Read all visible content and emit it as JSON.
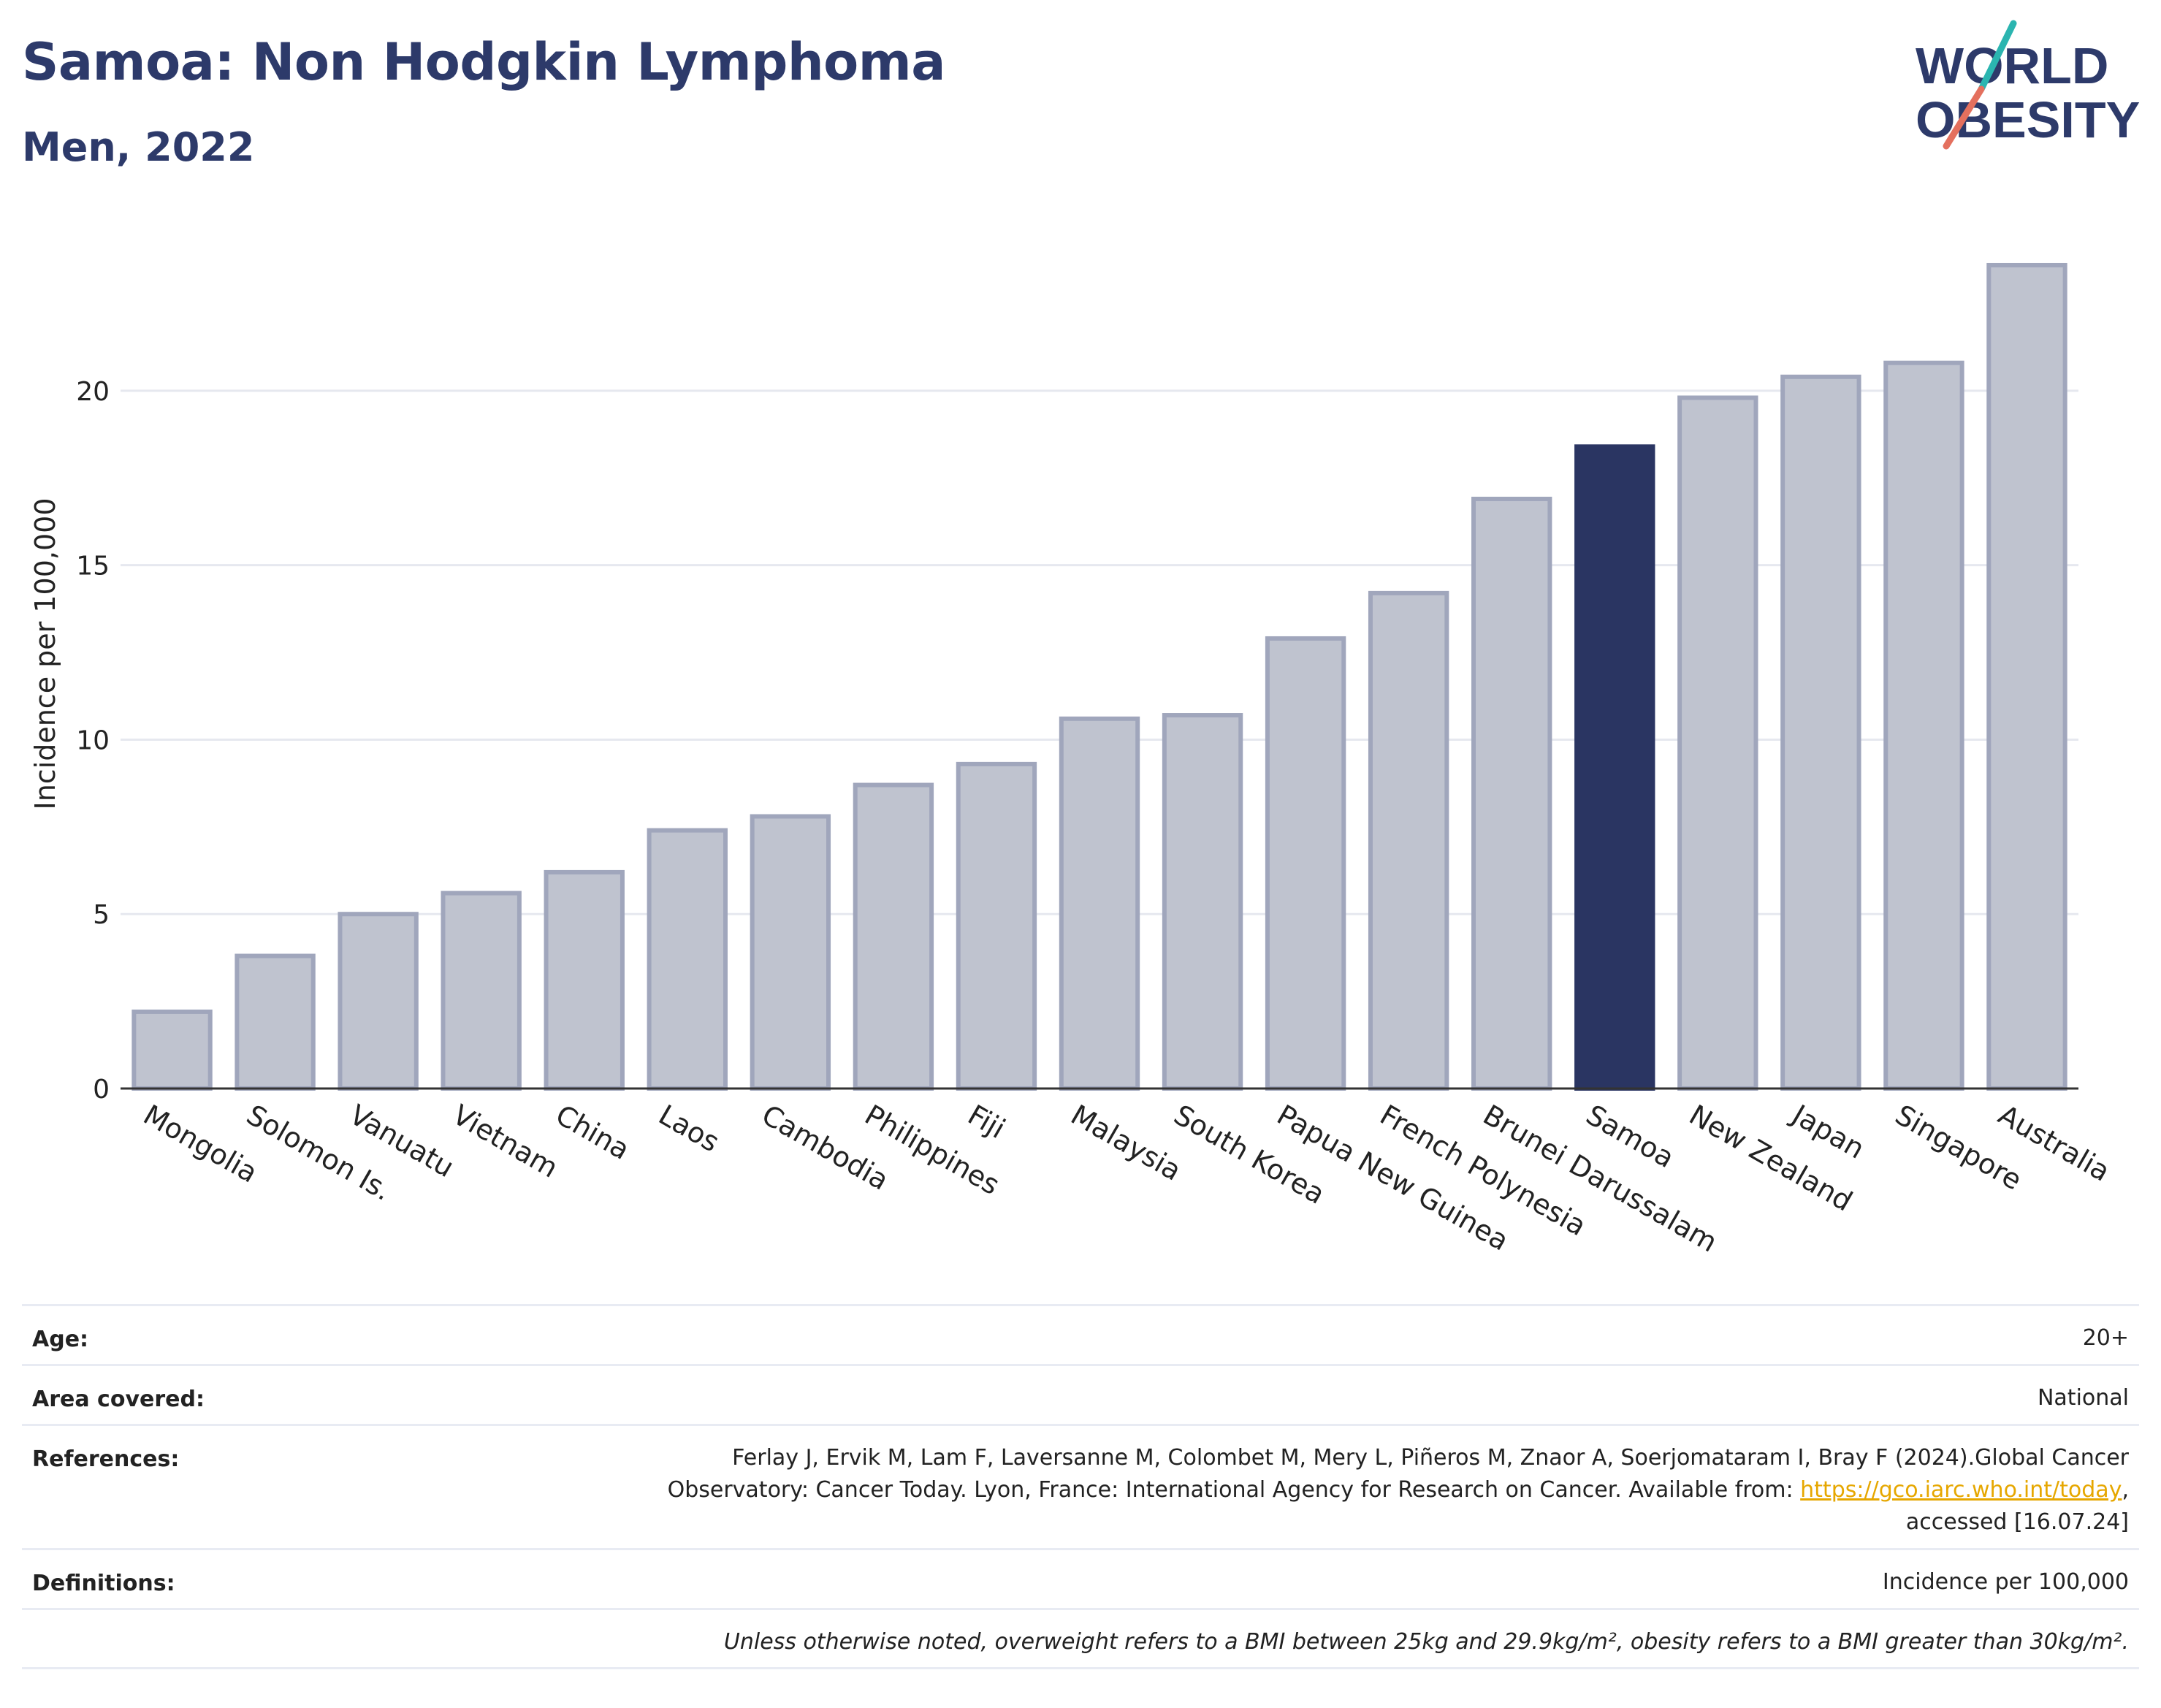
{
  "header": {
    "title": "Samoa: Non Hodgkin Lymphoma",
    "subtitle": "Men, 2022"
  },
  "logo": {
    "line1": "WORLD",
    "line2": "OBESITY",
    "accent_colors": [
      "#2bb5b0",
      "#e4705e"
    ]
  },
  "chart_data": {
    "type": "bar",
    "title": "",
    "xlabel": "",
    "ylabel": "Incidence per 100,000",
    "ylim": [
      0,
      24.5
    ],
    "yticks": [
      0,
      5,
      10,
      15,
      20
    ],
    "grid": true,
    "highlight": "Samoa",
    "colors": {
      "default": "#bfc3cf",
      "default_stroke": "#a0a6bc",
      "highlight": "#2a3562"
    },
    "categories": [
      "Mongolia",
      "Solomon Is.",
      "Vanuatu",
      "Vietnam",
      "China",
      "Laos",
      "Cambodia",
      "Philippines",
      "Fiji",
      "Malaysia",
      "South Korea",
      "Papua New Guinea",
      "French Polynesia",
      "Brunei Darussalam",
      "Samoa",
      "New Zealand",
      "Japan",
      "Singapore",
      "Australia"
    ],
    "values": [
      2.2,
      3.8,
      5.0,
      5.6,
      6.2,
      7.4,
      7.8,
      8.7,
      9.3,
      10.6,
      10.7,
      12.9,
      14.2,
      16.9,
      18.4,
      19.8,
      20.4,
      20.8,
      23.6
    ]
  },
  "info": {
    "age_label": "Age:",
    "age_value": "20+",
    "area_label": "Area covered:",
    "area_value": "National",
    "ref_label": "References:",
    "ref_line1": "Ferlay J, Ervik M, Lam F, Laversanne M, Colombet M, Mery L, Piñeros M, Znaor A, Soerjomataram I, Bray F (2024).Global Cancer",
    "ref_line2_pre": "Observatory: Cancer Today. Lyon, France: International Agency for Research on Cancer. Available from: ",
    "ref_link": "https://gco.iarc.who.int/today",
    "ref_line2_post": ",",
    "ref_line3": "accessed [16.07.24]",
    "def_label": "Definitions:",
    "def_value": "Incidence per 100,000",
    "note": "Unless otherwise noted, overweight refers to a BMI between 25kg and 29.9kg/m², obesity refers to a BMI greater than 30kg/m²."
  }
}
